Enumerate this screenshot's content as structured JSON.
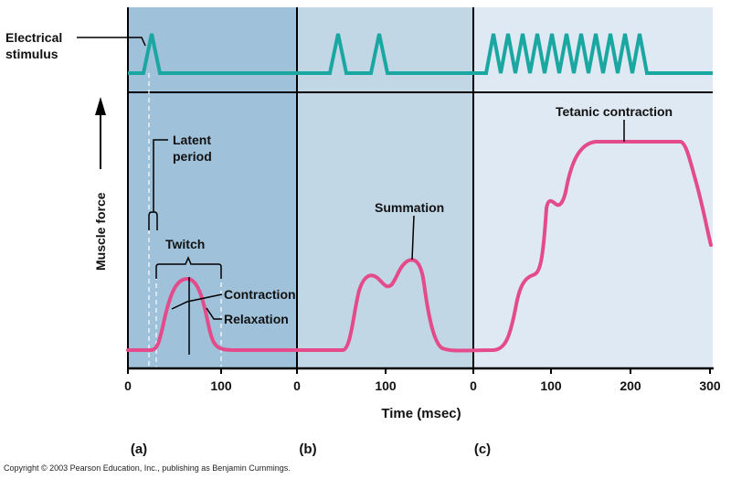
{
  "labels": {
    "electrical_stimulus": [
      "Electrical",
      "stimulus"
    ],
    "muscle_force": "Muscle force",
    "latent_period": [
      "Latent",
      "period"
    ],
    "twitch": "Twitch",
    "contraction": "Contraction",
    "relaxation": "Relaxation",
    "summation": "Summation",
    "tetanic_contraction": "Tetanic contraction",
    "time_axis": "Time (msec)"
  },
  "panels": [
    {
      "letter": "(a)",
      "ticks": [
        "0",
        "100"
      ],
      "color": "#9fc1d9"
    },
    {
      "letter": "(b)",
      "ticks": [
        "0",
        "100"
      ],
      "color": "#c1d7e6"
    },
    {
      "letter": "(c)",
      "ticks": [
        "0",
        "100",
        "200",
        "300"
      ],
      "color": "#dfe9f3"
    }
  ],
  "colors": {
    "stimulus_trace": "#1aa7a1",
    "force_trace": "#e34b8a",
    "axis": "#000000"
  },
  "copyright": "Copyright © 2003 Pearson Education, Inc., publishing as Benjamin Cummings."
}
